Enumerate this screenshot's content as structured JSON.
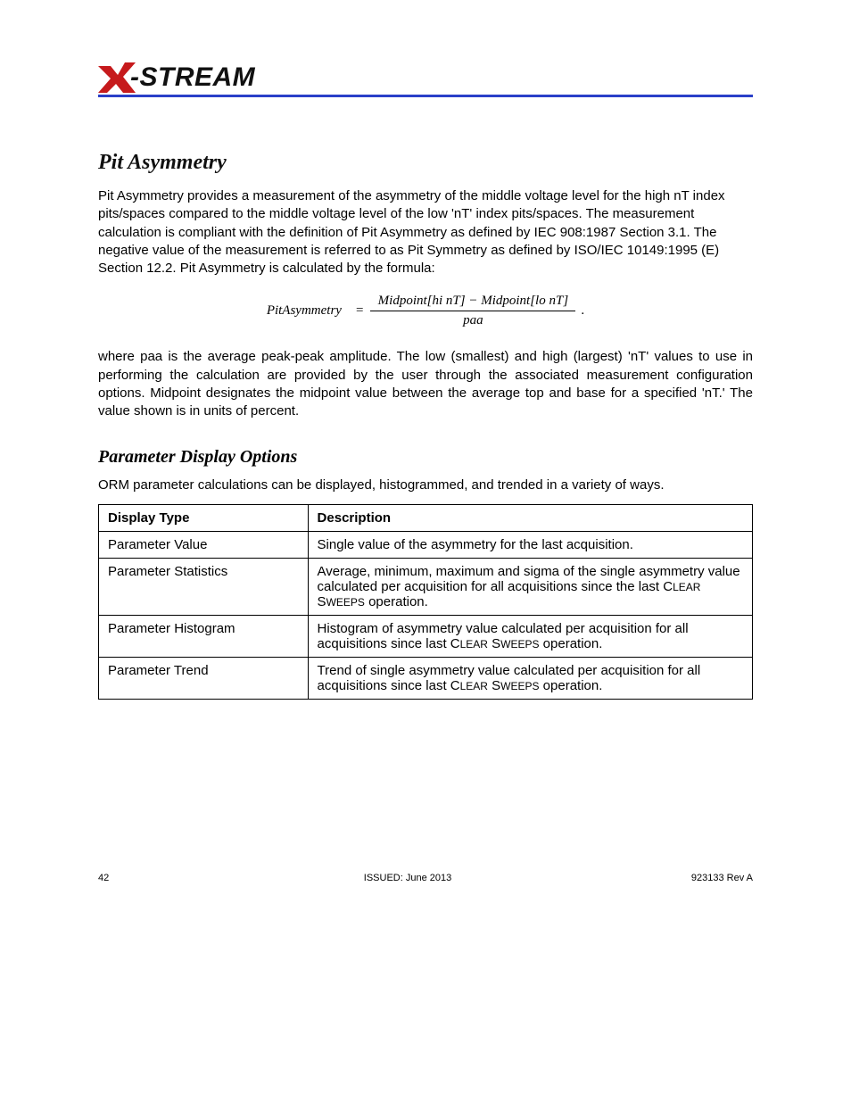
{
  "logo": {
    "text": "-STREAM",
    "x_fill": "#c61a1c",
    "underline_color": "#2a3fc8"
  },
  "section": {
    "title": "Pit Asymmetry",
    "para1": "Pit Asymmetry provides a measurement of the asymmetry of the middle voltage level for the high nT index pits/spaces compared to the middle voltage level of the low 'nT' index pits/spaces. The measurement calculation is compliant with the definition of Pit Asymmetry as defined by IEC 908:1987 Section 3.1. The negative value of the measurement is referred to as Pit Symmetry as defined by ISO/IEC 10149:1995 (E) Section 12.2. Pit Asymmetry is calculated by the formula:",
    "formula": {
      "lhs": "PitAsymmetry",
      "eq": "=",
      "num": "Midpoint[hi nT] − Midpoint[lo nT]",
      "den": "paa",
      "trailing": "."
    },
    "para2": "where paa is the average peak-peak amplitude. The low (smallest) and high (largest) 'nT' values to use in performing the calculation are provided by the user through the associated measurement configuration options. Midpoint designates the midpoint value between the average top and base for a specified 'nT.' The value shown is in units of percent."
  },
  "display": {
    "title": "Parameter Display Options",
    "intro": "ORM parameter calculations can be displayed, histogrammed, and trended in a variety of ways.",
    "columns": [
      "Display Type",
      "Description"
    ],
    "rows": [
      {
        "type": "Parameter Value",
        "desc": "Single value of the asymmetry for the last acquisition."
      },
      {
        "type": "Parameter Statistics",
        "desc_parts": [
          "Average, minimum, maximum and sigma of the single asymmetry value calculated per acquisition for all acquisitions since the last C",
          "LEAR",
          " S",
          "WEEPS",
          " operation."
        ]
      },
      {
        "type": "Parameter Histogram",
        "desc_parts": [
          "Histogram of asymmetry value calculated per acquisition for all acquisitions since last C",
          "LEAR",
          " S",
          "WEEPS",
          " operation."
        ]
      },
      {
        "type": "Parameter Trend",
        "desc_parts": [
          "Trend of single asymmetry value calculated per acquisition for all acquisitions since last C",
          "LEAR",
          " S",
          "WEEPS",
          " operation."
        ]
      }
    ]
  },
  "footer": {
    "page": "42",
    "issued": "ISSUED: June 2013",
    "rev": "923133 Rev A"
  }
}
